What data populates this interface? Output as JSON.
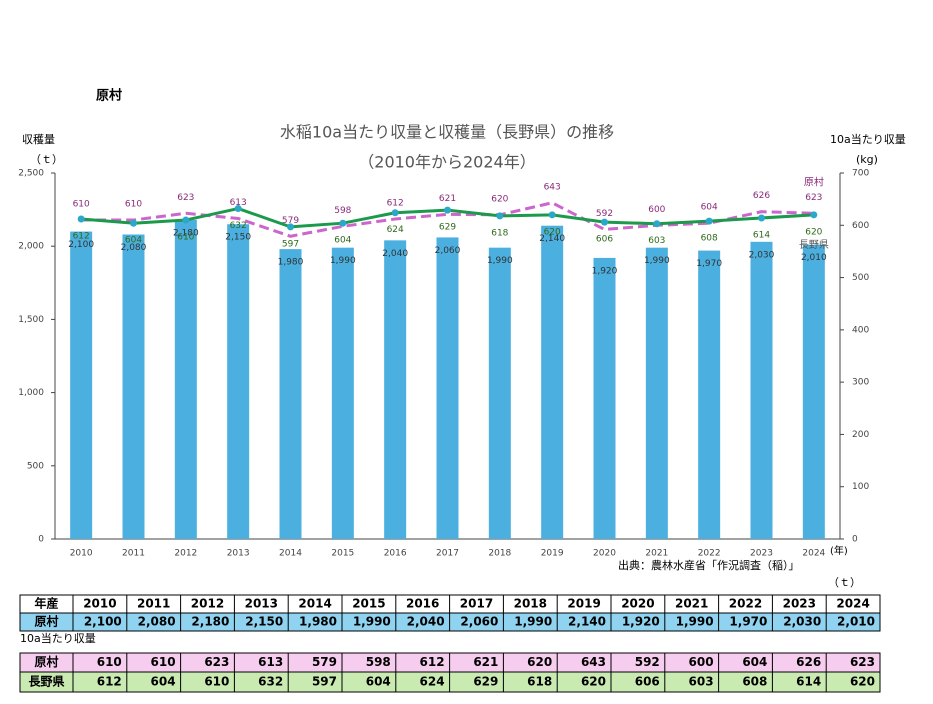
{
  "heading": "原村",
  "chart_data": {
    "type": "bar",
    "title": "水稲10a当たり収量と収穫量（長野県）の推移",
    "subtitle": "（2010年から2024年）",
    "y_label": "収穫量",
    "y_unit": "（ｔ）",
    "y2_label": "10a当たり収量",
    "y2_unit": "(kg)",
    "x_unit": "(年)",
    "source": "出典：農林水産省「作況調査（稲）」",
    "categories": [
      "2010",
      "2011",
      "2012",
      "2013",
      "2014",
      "2015",
      "2016",
      "2017",
      "2018",
      "2019",
      "2020",
      "2021",
      "2022",
      "2023",
      "2024"
    ],
    "series": [
      {
        "type": "bar",
        "color": "#4bb0e0",
        "values": [
          2100,
          2080,
          2180,
          2150,
          1980,
          1990,
          2040,
          2060,
          1990,
          2140,
          1920,
          1990,
          1970,
          2030,
          2010
        ],
        "value_labels": [
          "2,100",
          "2,080",
          "2,180",
          "2,150",
          "1,980",
          "1,990",
          "2,040",
          "2,060",
          "1,990",
          "2,140",
          "1,920",
          "1,990",
          "1,970",
          "2,030",
          "2,010"
        ]
      },
      {
        "name": "原村",
        "type": "line",
        "axis": "y2",
        "color": "#cc66cc",
        "dashed": true,
        "label_color": "#8a2a7a",
        "values": [
          610,
          610,
          623,
          613,
          579,
          598,
          612,
          621,
          620,
          643,
          592,
          600,
          604,
          626,
          623
        ]
      },
      {
        "name": "長野県",
        "type": "line",
        "axis": "y2",
        "color": "#1a9a4a",
        "marker_color": "#2aa8c8",
        "label_color": "#2e6a1a",
        "values": [
          612,
          604,
          610,
          632,
          597,
          604,
          624,
          629,
          618,
          620,
          606,
          603,
          608,
          614,
          620
        ]
      }
    ],
    "ylim": [
      0,
      2500
    ],
    "yticks": [
      0,
      500,
      {
        "value": 1000,
        "label": "1,000"
      },
      {
        "value": 1500,
        "label": "1,500"
      },
      {
        "value": 2000,
        "label": "2,000"
      },
      {
        "value": 2500,
        "label": "2,500"
      }
    ],
    "y2lim": [
      0,
      700
    ],
    "y2ticks": [
      0,
      100,
      200,
      300,
      400,
      500,
      600,
      700
    ]
  },
  "table": {
    "unit": "（ｔ）",
    "header": "年産",
    "production_label": "原村",
    "yield_title": "10a当たり収量",
    "yield_labels": [
      "原村",
      "長野県"
    ]
  }
}
